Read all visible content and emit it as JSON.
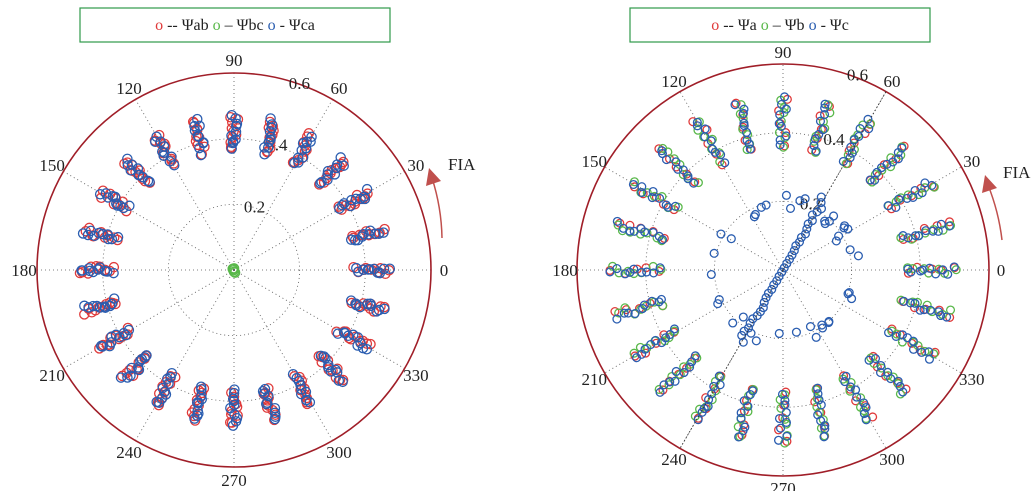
{
  "colors": {
    "red": "#e03a3a",
    "green": "#59b84a",
    "blue": "#2a5db0",
    "outer_ring": "#a01e28",
    "legend_border": "#2f9a4a",
    "fia_arrow": "#c0504d",
    "grid": "#555555"
  },
  "chart_data": [
    {
      "type": "scatter",
      "coordinate_system": "polar",
      "angle_unit": "degrees",
      "angle_labels": [
        "0",
        "30",
        "60",
        "90",
        "120",
        "150",
        "180",
        "210",
        "240",
        "270",
        "300",
        "330"
      ],
      "radial_ticks": [
        "0.2",
        "0.4",
        "0.6"
      ],
      "rmax": 0.6,
      "annotation": "FIA",
      "legend": [
        {
          "marker": "o",
          "sep": " -- ",
          "name": "Ψab",
          "color": "red"
        },
        {
          "marker": "o",
          "sep": " – ",
          "name": "Ψbc",
          "color": "green"
        },
        {
          "marker": "o",
          "sep": " - ",
          "name": "Ψca",
          "color": "blue"
        }
      ],
      "series": [
        {
          "name": "Ψab",
          "color": "red",
          "pattern": "ring",
          "angles_deg": [
            0,
            15,
            30,
            45,
            60,
            75,
            90,
            105,
            120,
            135,
            150,
            165,
            180,
            195,
            210,
            225,
            240,
            255,
            270,
            285,
            300,
            315,
            330,
            345
          ],
          "r_min": 0.37,
          "r_max": 0.47,
          "points_per_cluster": 10
        },
        {
          "name": "Ψbc",
          "color": "green",
          "pattern": "center",
          "angles_deg": [
            0
          ],
          "r_min": 0.0,
          "r_max": 0.01,
          "points_per_cluster": 6
        },
        {
          "name": "Ψca",
          "color": "blue",
          "pattern": "ring",
          "angles_deg": [
            0,
            15,
            30,
            45,
            60,
            75,
            90,
            105,
            120,
            135,
            150,
            165,
            180,
            195,
            210,
            225,
            240,
            255,
            270,
            285,
            300,
            315,
            330,
            345
          ],
          "r_min": 0.37,
          "r_max": 0.47,
          "points_per_cluster": 10
        }
      ]
    },
    {
      "type": "scatter",
      "coordinate_system": "polar",
      "angle_unit": "degrees",
      "angle_labels": [
        "0",
        "30",
        "60",
        "90",
        "120",
        "150",
        "180",
        "210",
        "240",
        "270",
        "300",
        "330"
      ],
      "radial_ticks": [
        "0.2",
        "0.4",
        "0.6"
      ],
      "rmax": 0.6,
      "annotation": "FIA",
      "legend": [
        {
          "marker": "o",
          "sep": " -- ",
          "name": "Ψa",
          "color": "red"
        },
        {
          "marker": "o",
          "sep": " – ",
          "name": "Ψb",
          "color": "green"
        },
        {
          "marker": "o",
          "sep": " - ",
          "name": "Ψc",
          "color": "blue"
        }
      ],
      "series": [
        {
          "name": "Ψa",
          "color": "red",
          "pattern": "ring",
          "angles_deg": [
            0,
            15,
            30,
            45,
            60,
            75,
            90,
            105,
            120,
            135,
            150,
            165,
            180,
            195,
            210,
            225,
            240,
            255,
            270,
            285,
            300,
            315,
            330,
            345
          ],
          "r_min": 0.36,
          "r_max": 0.5,
          "points_per_cluster": 5
        },
        {
          "name": "Ψb",
          "color": "green",
          "pattern": "ring",
          "angles_deg": [
            0,
            15,
            30,
            45,
            60,
            75,
            90,
            105,
            120,
            135,
            150,
            165,
            180,
            195,
            210,
            225,
            240,
            255,
            270,
            285,
            300,
            315,
            330,
            345
          ],
          "r_min": 0.36,
          "r_max": 0.5,
          "points_per_cluster": 7
        },
        {
          "name": "Ψc",
          "color": "blue",
          "pattern": "ring+line",
          "angles_deg": [
            0,
            15,
            30,
            45,
            60,
            75,
            90,
            105,
            120,
            135,
            150,
            165,
            180,
            195,
            210,
            225,
            240,
            255,
            270,
            285,
            300,
            315,
            330,
            345
          ],
          "r_min": 0.36,
          "r_max": 0.5,
          "points_per_cluster": 9,
          "line_angle_deg": 60,
          "line_r": 0.24,
          "inner_ring_r": 0.2
        }
      ]
    }
  ]
}
